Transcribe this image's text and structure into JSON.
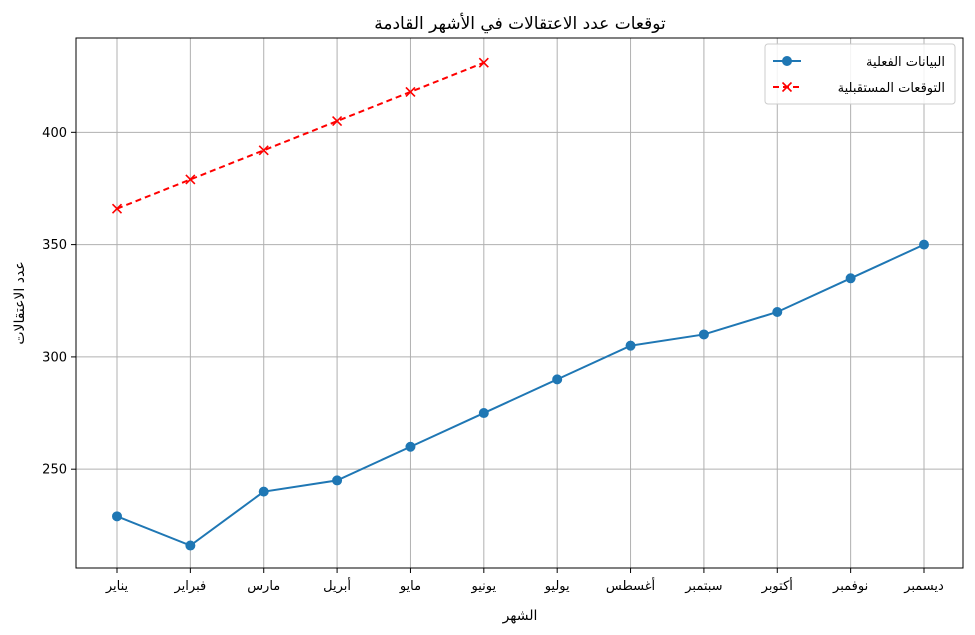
{
  "chart_data": {
    "type": "line",
    "title": "توقعات عدد الاعتقالات في الأشهر القادمة",
    "xlabel": "الشهر",
    "ylabel": "عدد الاعتقالات",
    "categories": [
      "يناير",
      "فبراير",
      "مارس",
      "أبريل",
      "مايو",
      "يونيو",
      "يوليو",
      "أغسطس",
      "سبتمبر",
      "أكتوبر",
      "نوفمبر",
      "ديسمبر"
    ],
    "y_ticks": [
      250,
      300,
      350,
      400
    ],
    "ylim": [
      206,
      442
    ],
    "grid": true,
    "legend_position": "top-right",
    "series": [
      {
        "name": "البيانات الفعلية",
        "color": "#1f77b4",
        "marker": "circle",
        "line_style": "solid",
        "values": [
          229,
          216,
          240,
          245,
          260,
          275,
          290,
          305,
          310,
          320,
          335,
          350
        ]
      },
      {
        "name": "التوقعات المستقبلية",
        "color": "#ff0000",
        "marker": "x",
        "line_style": "dashed",
        "values": [
          366,
          379,
          392,
          405,
          418,
          431,
          null,
          null,
          null,
          null,
          null,
          null
        ]
      }
    ]
  }
}
